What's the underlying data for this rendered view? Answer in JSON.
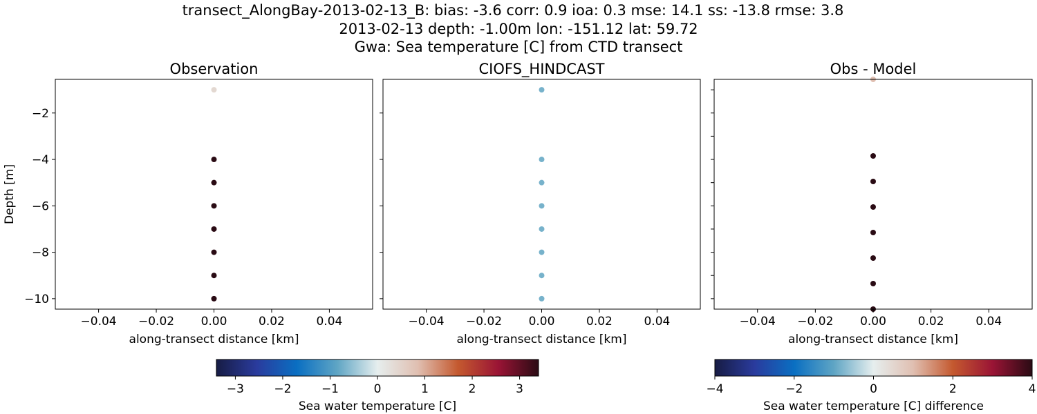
{
  "figure": {
    "title_lines": [
      "transect_AlongBay-2013-02-13_B: bias: -3.6  corr: 0.9  ioa: 0.3  mse: 14.1  ss: -13.8  rmse: 3.8",
      "2013-02-13 depth: -1.00m lon: -151.12 lat: 59.72",
      "Gwa: Sea temperature [C] from CTD transect"
    ]
  },
  "chart_data": [
    {
      "type": "scatter",
      "title": "Observation",
      "xlabel": "along-transect distance [km]",
      "ylabel": "Depth [m]",
      "xlim": [
        -0.055,
        0.055
      ],
      "ylim": [
        -10.45,
        -0.55
      ],
      "x_ticks": [
        -0.04,
        -0.02,
        0.0,
        0.02,
        0.04
      ],
      "x_tick_labels": [
        "−0.04",
        "−0.02",
        "0.00",
        "0.02",
        "0.04"
      ],
      "y_ticks": [
        -2,
        -4,
        -6,
        -8,
        -10
      ],
      "y_tick_labels": [
        "−2",
        "−4",
        "−6",
        "−8",
        "−10"
      ],
      "grid": false,
      "colorscale": "sea-water-temperature",
      "clim": [
        -3.4,
        3.4
      ],
      "points": [
        {
          "x": 0.0,
          "y": -1.0,
          "value": 0.4
        },
        {
          "x": 0.0,
          "y": -4.0,
          "value": 3.4
        },
        {
          "x": 0.0,
          "y": -5.0,
          "value": 3.4
        },
        {
          "x": 0.0,
          "y": -6.0,
          "value": 3.4
        },
        {
          "x": 0.0,
          "y": -7.0,
          "value": 3.4
        },
        {
          "x": 0.0,
          "y": -8.0,
          "value": 3.4
        },
        {
          "x": 0.0,
          "y": -9.0,
          "value": 3.4
        },
        {
          "x": 0.0,
          "y": -10.0,
          "value": 3.4
        }
      ]
    },
    {
      "type": "scatter",
      "title": "CIOFS_HINDCAST",
      "xlabel": "along-transect distance [km]",
      "ylabel": "",
      "xlim": [
        -0.055,
        0.055
      ],
      "ylim": [
        -10.45,
        -0.55
      ],
      "x_ticks": [
        -0.04,
        -0.02,
        0.0,
        0.02,
        0.04
      ],
      "x_tick_labels": [
        "−0.04",
        "−0.02",
        "0.00",
        "0.02",
        "0.04"
      ],
      "y_ticks": [
        -2,
        -4,
        -6,
        -8,
        -10
      ],
      "y_tick_labels": [],
      "grid": false,
      "colorscale": "sea-water-temperature",
      "clim": [
        -3.4,
        3.4
      ],
      "points": [
        {
          "x": 0.0,
          "y": -1.0,
          "value": -0.7
        },
        {
          "x": 0.0,
          "y": -4.0,
          "value": -0.7
        },
        {
          "x": 0.0,
          "y": -5.0,
          "value": -0.7
        },
        {
          "x": 0.0,
          "y": -6.0,
          "value": -0.7
        },
        {
          "x": 0.0,
          "y": -7.0,
          "value": -0.7
        },
        {
          "x": 0.0,
          "y": -8.0,
          "value": -0.7
        },
        {
          "x": 0.0,
          "y": -9.0,
          "value": -0.7
        },
        {
          "x": 0.0,
          "y": -10.0,
          "value": -0.7
        }
      ]
    },
    {
      "type": "scatter",
      "title": "Obs - Model",
      "xlabel": "along-transect distance [km]",
      "ylabel": "",
      "xlim": [
        -0.055,
        0.055
      ],
      "ylim": [
        -10.45,
        -0.55
      ],
      "x_ticks": [
        -0.04,
        -0.02,
        0.0,
        0.02,
        0.04
      ],
      "x_tick_labels": [
        "−0.04",
        "−0.02",
        "0.00",
        "0.02",
        "0.04"
      ],
      "y_ticks": [
        -1,
        -2,
        -3,
        -4,
        -5,
        -6,
        -7,
        -8,
        -9,
        -10
      ],
      "y_tick_labels": [],
      "grid": false,
      "colorscale": "difference",
      "clim": [
        -4,
        4
      ],
      "points": [
        {
          "x": 0.0,
          "y": -0.55,
          "value": 1.0
        },
        {
          "x": 0.0,
          "y": -3.85,
          "value": 4.0
        },
        {
          "x": 0.0,
          "y": -4.95,
          "value": 4.0
        },
        {
          "x": 0.0,
          "y": -6.05,
          "value": 4.0
        },
        {
          "x": 0.0,
          "y": -7.15,
          "value": 4.0
        },
        {
          "x": 0.0,
          "y": -8.25,
          "value": 4.0
        },
        {
          "x": 0.0,
          "y": -9.35,
          "value": 4.0
        },
        {
          "x": 0.0,
          "y": -10.45,
          "value": 4.0
        }
      ]
    }
  ],
  "colorbars": [
    {
      "label": "Sea water temperature [C]",
      "range": [
        -3.4,
        3.4
      ],
      "ticks": [
        -3,
        -2,
        -1,
        0,
        1,
        2,
        3
      ],
      "tick_labels": [
        "−3",
        "−2",
        "−1",
        "0",
        "1",
        "2",
        "3"
      ]
    },
    {
      "label": "Sea water temperature [C] difference",
      "range": [
        -4,
        4
      ],
      "ticks": [
        -4,
        -2,
        0,
        2,
        4
      ],
      "tick_labels": [
        "−4",
        "−2",
        "0",
        "2",
        "4"
      ]
    }
  ],
  "colors": {
    "colormap_stops": [
      "#171c44",
      "#2a3b9d",
      "#0a6fc2",
      "#5fa5c4",
      "#e6eeee",
      "#e0bfb1",
      "#c4592f",
      "#9a1435",
      "#2a0b14"
    ]
  }
}
